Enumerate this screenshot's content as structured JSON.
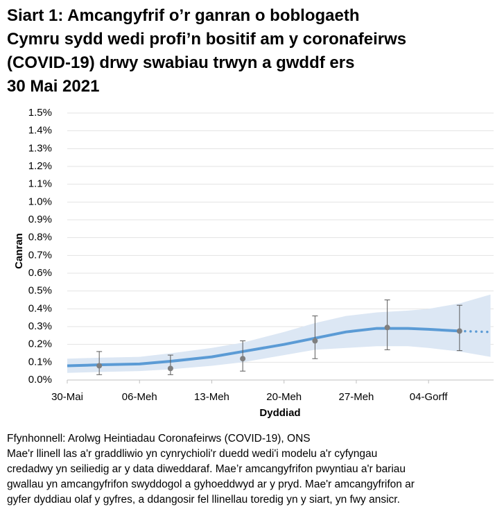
{
  "chart_data": {
    "type": "line",
    "title_lines": [
      "Siart 1: Amcangyfrif o’r ganran o boblogaeth",
      "Cymru sydd wedi profi’n bositif am y coronafeirws",
      "(COVID-19) drwy swabiau trwyn a gwddf ers",
      "30 Mai 2021"
    ],
    "y_label": "Canran",
    "x_label": "Dyddiad",
    "x": [
      0,
      3,
      7,
      10,
      14,
      17,
      21,
      24,
      27,
      30,
      33,
      35,
      38,
      41
    ],
    "modelled": [
      0.08,
      0.085,
      0.09,
      0.105,
      0.13,
      0.16,
      0.2,
      0.235,
      0.27,
      0.29,
      0.29,
      0.285,
      0.275,
      null
    ],
    "provisional": [
      null,
      null,
      null,
      null,
      null,
      null,
      null,
      null,
      null,
      null,
      null,
      null,
      0.275,
      0.27
    ],
    "lower": [
      0.04,
      0.045,
      0.05,
      0.06,
      0.08,
      0.1,
      0.14,
      0.17,
      0.18,
      0.19,
      0.19,
      0.18,
      0.16,
      0.13
    ],
    "upper": [
      0.12,
      0.125,
      0.13,
      0.15,
      0.18,
      0.21,
      0.27,
      0.32,
      0.36,
      0.38,
      0.39,
      0.4,
      0.43,
      0.48
    ],
    "line_color": "#5b9bd5",
    "band_color": "#dce7f4",
    "points": {
      "x": [
        3.1,
        10,
        17,
        24,
        31,
        38
      ],
      "values": [
        0.08,
        0.065,
        0.12,
        0.22,
        0.295,
        0.275
      ],
      "lower": [
        0.03,
        0.03,
        0.05,
        0.12,
        0.17,
        0.165
      ],
      "upper": [
        0.16,
        0.14,
        0.22,
        0.36,
        0.45,
        0.42
      ],
      "color": "#7f7f7f"
    },
    "xlim": [
      0,
      41.3
    ],
    "xticks": [
      {
        "value": 0,
        "label": "30-Mai"
      },
      {
        "value": 7,
        "label": "06-Meh"
      },
      {
        "value": 14,
        "label": "13-Meh"
      },
      {
        "value": 21,
        "label": "20-Meh"
      },
      {
        "value": 28,
        "label": "27-Meh"
      },
      {
        "value": 35,
        "label": "04-Gorff"
      }
    ],
    "ylim": [
      0,
      1.5
    ],
    "yticks": [
      {
        "value": 0,
        "label": "0.0%"
      },
      {
        "value": 0.1,
        "label": "0.1%"
      },
      {
        "value": 0.2,
        "label": "0.2%"
      },
      {
        "value": 0.3,
        "label": "0.3%"
      },
      {
        "value": 0.4,
        "label": "0.4%"
      },
      {
        "value": 0.5,
        "label": "0.5%"
      },
      {
        "value": 0.6,
        "label": "0.6%"
      },
      {
        "value": 0.7,
        "label": "0.7%"
      },
      {
        "value": 0.8,
        "label": "0.8%"
      },
      {
        "value": 0.9,
        "label": "0.9%"
      },
      {
        "value": 1.0,
        "label": "1.0%"
      },
      {
        "value": 1.1,
        "label": "1.1%"
      },
      {
        "value": 1.2,
        "label": "1.2%"
      },
      {
        "value": 1.3,
        "label": "1.3%"
      },
      {
        "value": 1.4,
        "label": "1.4%"
      },
      {
        "value": 1.5,
        "label": "1.5%"
      }
    ],
    "grid": true,
    "notes": [
      "Ffynhonnell: Arolwg Heintiadau Coronafeirws (COVID-19), ONS",
      "Mae'r llinell las a'r graddliwio yn cynrychioli'r duedd wedi'i modelu a'r cyfyngau",
      "credadwy yn seiliedig ar y data diweddaraf. Mae’r amcangyfrifon pwyntiau a'r bariau",
      "gwallau yn amcangyfrifon swyddogol a gyhoeddwyd ar y pryd. Mae'r amcangyfrifon ar",
      "gyfer dyddiau olaf y gyfres, a ddangosir fel llinellau toredig yn y siart, yn fwy ansicr."
    ]
  }
}
